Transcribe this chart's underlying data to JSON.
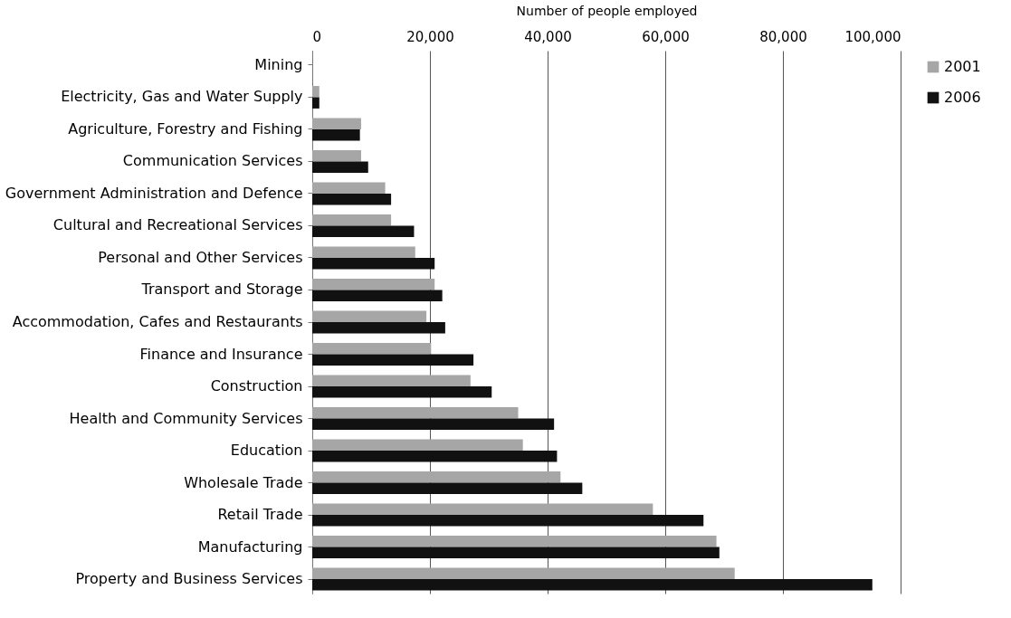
{
  "chart_data": {
    "type": "bar",
    "orientation": "horizontal",
    "xlabel": "Number of people employed",
    "categories": [
      "Mining",
      "Electricity, Gas and Water Supply",
      "Agriculture, Forestry and Fishing",
      "Communication Services",
      "Government Administration and Defence",
      "Cultural and Recreational Services",
      "Personal and Other Services",
      "Transport and Storage",
      "Accommodation, Cafes and Restaurants",
      "Finance and Insurance",
      "Construction",
      "Health and Community Services",
      "Education",
      "Wholesale Trade",
      "Retail Trade",
      "Manufacturing",
      "Property and Business Services"
    ],
    "series": [
      {
        "name": "2001",
        "color": "#a6a6a6",
        "values": [
          0,
          1200,
          8300,
          8300,
          12400,
          13400,
          17500,
          20800,
          19400,
          20200,
          26900,
          35000,
          35800,
          42200,
          57900,
          68700,
          71800
        ]
      },
      {
        "name": "2006",
        "color": "#111111",
        "values": [
          0,
          1200,
          8100,
          9500,
          13400,
          17300,
          20800,
          22100,
          22600,
          27400,
          30500,
          41100,
          41600,
          45900,
          66500,
          69200,
          95200
        ]
      }
    ],
    "xlim": [
      0,
      100000
    ],
    "xticks": [
      0,
      {
        "value": 20000,
        "label": "20,000"
      },
      {
        "value": 40000,
        "label": "40,000"
      },
      {
        "value": 60000,
        "label": "60,000"
      },
      {
        "value": 80000,
        "label": "80,000"
      },
      {
        "value": 100000,
        "label": "100,000"
      }
    ],
    "grid": "x",
    "legend": "right"
  }
}
